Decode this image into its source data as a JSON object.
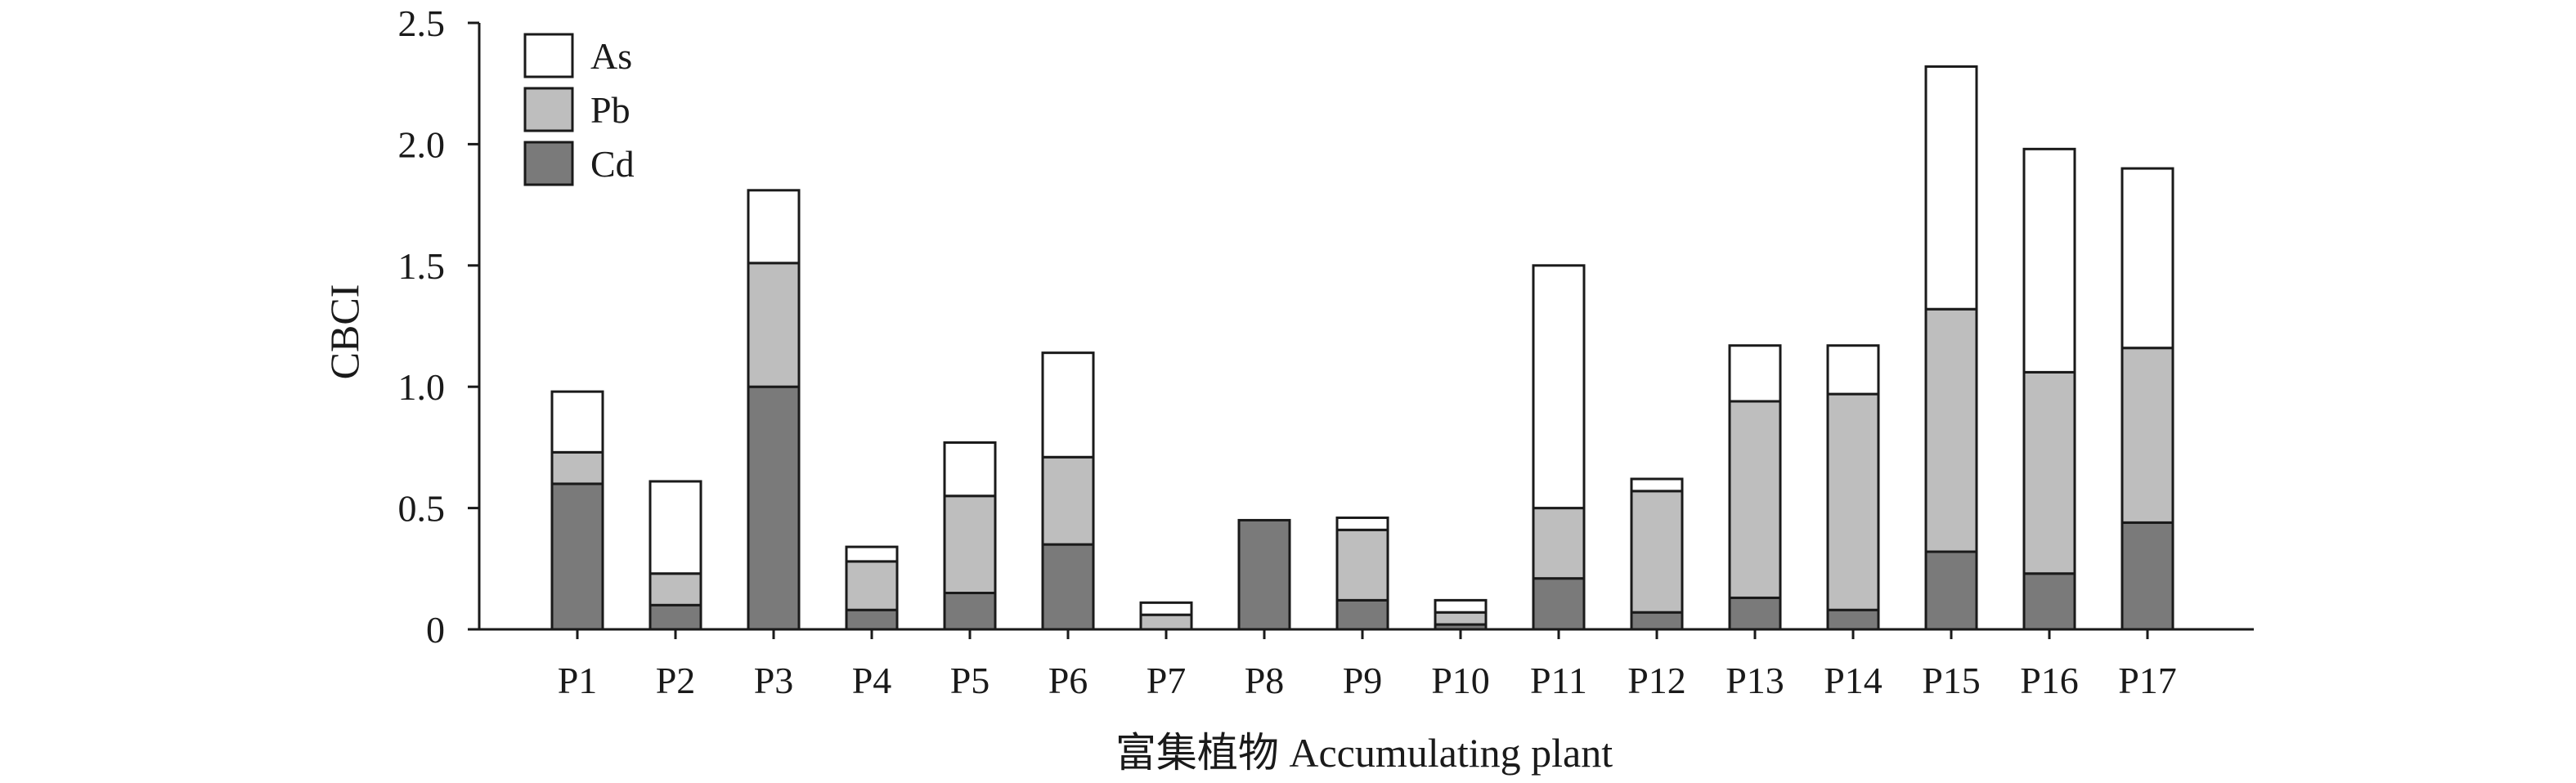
{
  "chart_data": {
    "type": "bar",
    "stacked": true,
    "title": "",
    "xlabel": "富集植物 Accumulating plant",
    "ylabel": "CBCI",
    "categories": [
      "P1",
      "P2",
      "P3",
      "P4",
      "P5",
      "P6",
      "P7",
      "P8",
      "P9",
      "P10",
      "P11",
      "P12",
      "P13",
      "P14",
      "P15",
      "P16",
      "P17"
    ],
    "series": [
      {
        "name": "Cd",
        "color": "#7a7a7a",
        "values": [
          0.6,
          0.1,
          1.0,
          0.08,
          0.15,
          0.35,
          0.0,
          0.45,
          0.12,
          0.02,
          0.21,
          0.07,
          0.13,
          0.08,
          0.32,
          0.23,
          0.44
        ]
      },
      {
        "name": "Pb",
        "color": "#bebebe",
        "values": [
          0.13,
          0.13,
          0.51,
          0.2,
          0.4,
          0.36,
          0.06,
          0.0,
          0.29,
          0.05,
          0.29,
          0.5,
          0.81,
          0.89,
          1.0,
          0.83,
          0.72
        ]
      },
      {
        "name": "As",
        "color": "#ffffff",
        "values": [
          0.25,
          0.38,
          0.3,
          0.06,
          0.22,
          0.43,
          0.05,
          0.0,
          0.05,
          0.05,
          1.0,
          0.05,
          0.23,
          0.2,
          1.0,
          0.92,
          0.74
        ]
      }
    ],
    "yticks": [
      "0",
      "0.5",
      "1.0",
      "1.5",
      "2.0",
      "2.5"
    ],
    "ylim": [
      0,
      2.5
    ],
    "legend": {
      "position": "top-left",
      "order": [
        "As",
        "Pb",
        "Cd"
      ]
    },
    "grid": false
  }
}
